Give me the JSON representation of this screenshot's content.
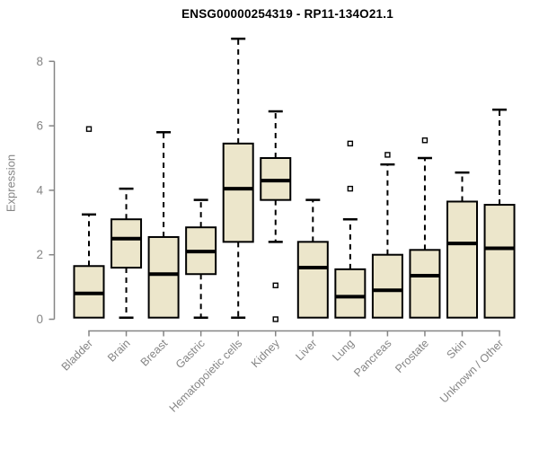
{
  "page": {
    "background": "#ffffff"
  },
  "chart_data": {
    "type": "boxplot",
    "title": "ENSG00000254319 - RP11-134O21.1",
    "xlabel": "",
    "ylabel": "Expression",
    "ylim": [
      0,
      8.7
    ],
    "yticks": [
      0,
      2,
      4,
      6,
      8
    ],
    "grid": false,
    "legend": "none",
    "axis_color": "#858585",
    "box_fill": "#ECE6CB",
    "box_stroke": "#000000",
    "categories": [
      "Bladder",
      "Brain",
      "Breast",
      "Gastric",
      "Hematopoietic cells",
      "Kidney",
      "Liver",
      "Lung",
      "Pancreas",
      "Prostate",
      "Skin",
      "Unknown / Other"
    ],
    "series": [
      {
        "category": "Bladder",
        "whisker_low": null,
        "q1": 0.05,
        "median": 0.8,
        "q3": 1.65,
        "whisker_high": 3.25,
        "outliers": [
          5.9
        ]
      },
      {
        "category": "Brain",
        "whisker_low": 0.05,
        "q1": 1.6,
        "median": 2.5,
        "q3": 3.1,
        "whisker_high": 4.05,
        "outliers": []
      },
      {
        "category": "Breast",
        "whisker_low": null,
        "q1": 0.05,
        "median": 1.4,
        "q3": 2.55,
        "whisker_high": 5.8,
        "outliers": []
      },
      {
        "category": "Gastric",
        "whisker_low": 0.05,
        "q1": 1.4,
        "median": 2.1,
        "q3": 2.85,
        "whisker_high": 3.7,
        "outliers": []
      },
      {
        "category": "Hematopoietic cells",
        "whisker_low": 0.05,
        "q1": 2.4,
        "median": 4.05,
        "q3": 5.45,
        "whisker_high": 8.7,
        "outliers": []
      },
      {
        "category": "Kidney",
        "whisker_low": 2.4,
        "q1": 3.7,
        "median": 4.3,
        "q3": 5.0,
        "whisker_high": 6.45,
        "outliers": [
          1.05,
          0.0
        ]
      },
      {
        "category": "Liver",
        "whisker_low": null,
        "q1": 0.05,
        "median": 1.6,
        "q3": 2.4,
        "whisker_high": 3.7,
        "outliers": []
      },
      {
        "category": "Lung",
        "whisker_low": null,
        "q1": 0.05,
        "median": 0.7,
        "q3": 1.55,
        "whisker_high": 3.1,
        "outliers": [
          4.05,
          5.45
        ]
      },
      {
        "category": "Pancreas",
        "whisker_low": null,
        "q1": 0.05,
        "median": 0.9,
        "q3": 2.0,
        "whisker_high": 4.8,
        "outliers": [
          5.1
        ]
      },
      {
        "category": "Prostate",
        "whisker_low": null,
        "q1": 0.05,
        "median": 1.35,
        "q3": 2.15,
        "whisker_high": 5.0,
        "outliers": [
          5.55
        ]
      },
      {
        "category": "Skin",
        "whisker_low": null,
        "q1": 0.05,
        "median": 2.35,
        "q3": 3.65,
        "whisker_high": 4.55,
        "outliers": []
      },
      {
        "category": "Unknown / Other",
        "whisker_low": null,
        "q1": 0.05,
        "median": 2.2,
        "q3": 3.55,
        "whisker_high": 6.5,
        "outliers": []
      }
    ]
  }
}
